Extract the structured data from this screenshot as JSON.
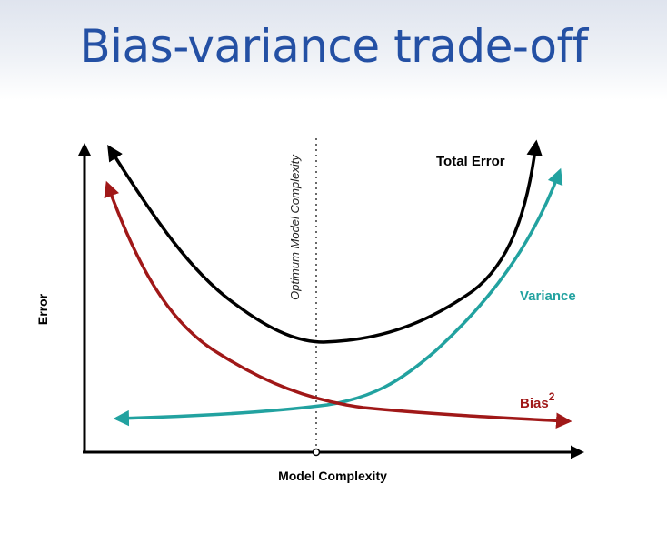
{
  "slide": {
    "title": "Bias-variance trade-off"
  },
  "diagram": {
    "y_axis_label": "Error",
    "x_axis_label": "Model Complexity",
    "optimum_label": "Optimum Model Complexity",
    "curves": {
      "total": {
        "label": "Total Error",
        "color": "#000000"
      },
      "variance": {
        "label": "Variance",
        "color": "#22a2a0"
      },
      "bias": {
        "label": "Bias",
        "superscript": "2",
        "color": "#a01818"
      }
    }
  }
}
